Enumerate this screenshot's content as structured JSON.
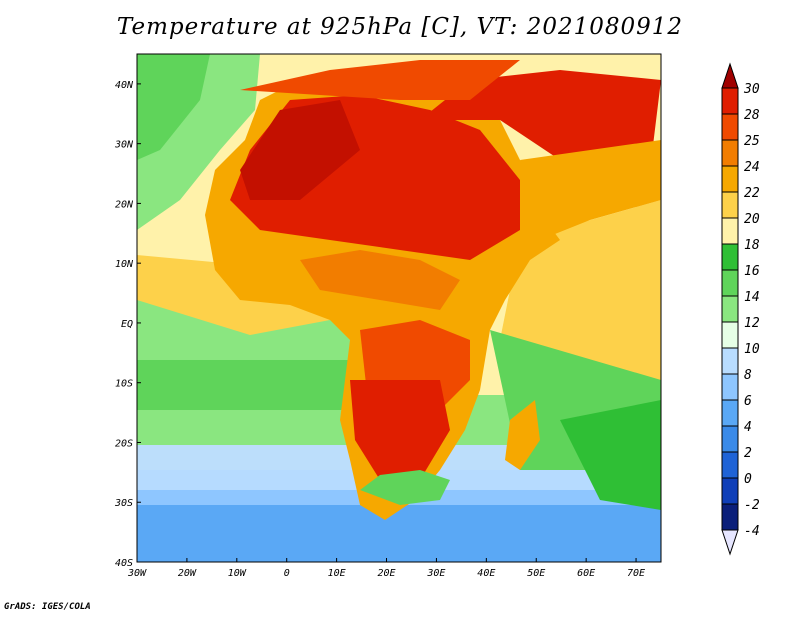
{
  "title": "Temperature at 925hPa [C], VT: 2021080912",
  "credit": "GrADS: IGES/COLA",
  "map": {
    "region": "Africa",
    "lon_range": [
      -30,
      75
    ],
    "lat_range": [
      -40,
      45
    ],
    "x_ticks": [
      "30W",
      "20W",
      "10W",
      "0",
      "10E",
      "20E",
      "30E",
      "40E",
      "50E",
      "60E",
      "70E"
    ],
    "y_ticks": [
      "40S",
      "30S",
      "20S",
      "10S",
      "EQ",
      "10N",
      "20N",
      "30N",
      "40N"
    ]
  },
  "colorbar": {
    "labels": [
      "30",
      "28",
      "25",
      "24",
      "22",
      "20",
      "18",
      "16",
      "14",
      "12",
      "10",
      "8",
      "6",
      "4",
      "2",
      "0",
      "-2",
      "-4"
    ],
    "colors": [
      "#a00000",
      "#e01e00",
      "#f04a00",
      "#f27d00",
      "#f6a800",
      "#fdd14a",
      "#fff2aa",
      "#2fbf35",
      "#5fd45a",
      "#8ae680",
      "#e6ffe6",
      "#b8dcff",
      "#8ec6ff",
      "#5aa8f5",
      "#3a8ae8",
      "#1f63d6",
      "#0f3fb8",
      "#0a1f7a",
      "#e6e6ff"
    ]
  }
}
